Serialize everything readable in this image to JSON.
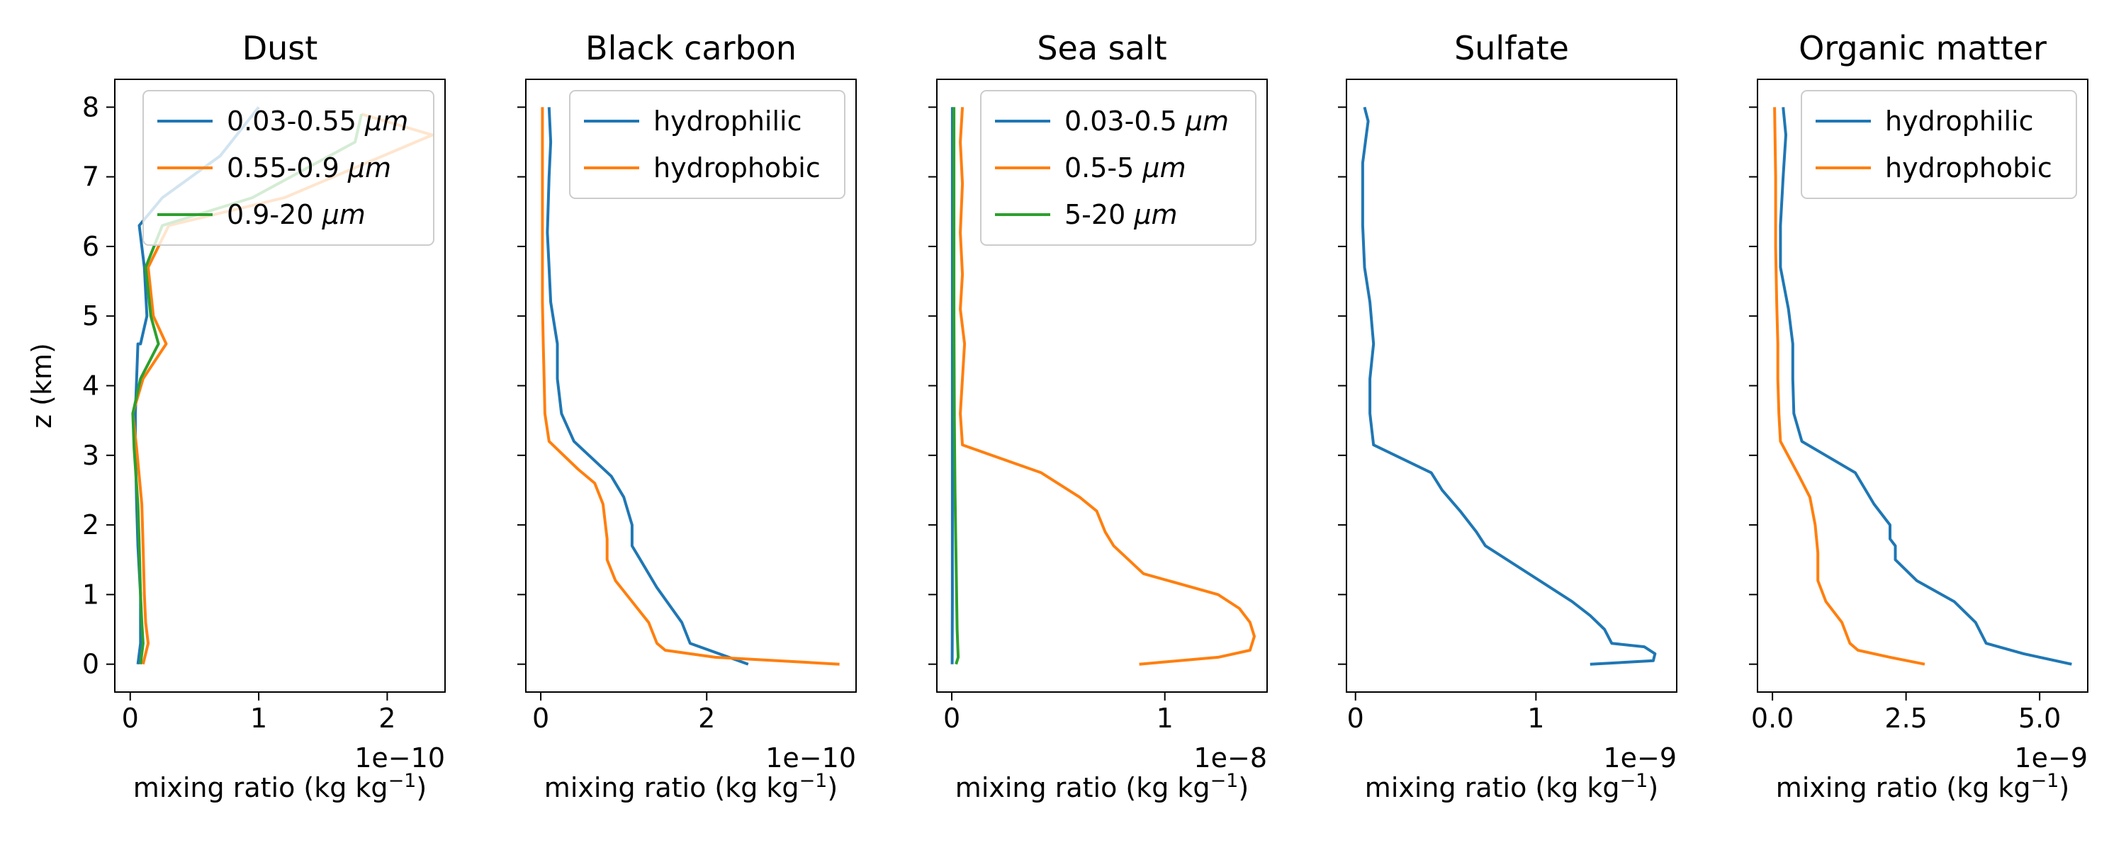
{
  "chart_data": [
    {
      "type": "line",
      "title": "Dust",
      "xlabel": "mixing ratio (kg kg",
      "xlabel_sup": "−1",
      "xlabel_close": ")",
      "ylabel": "z (km)",
      "offset_text": "1e−10",
      "xlim": [
        -0.12,
        2.45
      ],
      "ylim": [
        -0.4,
        8.4
      ],
      "xticks": [
        0,
        1,
        2
      ],
      "xtick_labels": [
        "0",
        "1",
        "2"
      ],
      "yticks": [
        0,
        1,
        2,
        3,
        4,
        5,
        6,
        7,
        8
      ],
      "ytick_labels": [
        "0",
        "1",
        "2",
        "3",
        "4",
        "5",
        "6",
        "7",
        "8"
      ],
      "legend_position": "top-right",
      "series": [
        {
          "name": "0.03-0.55 μm",
          "color": "#1f77b4",
          "x": [
            0.06,
            0.08,
            0.08,
            0.08,
            0.06,
            0.05,
            0.04,
            0.04,
            0.05,
            0.06,
            0.08,
            0.13,
            0.11,
            0.07,
            0.25,
            0.7,
            1.0
          ],
          "y": [
            0.0,
            0.3,
            0.6,
            1.0,
            1.7,
            2.3,
            3.1,
            3.6,
            4.1,
            4.6,
            4.6,
            5.0,
            5.7,
            6.3,
            6.7,
            7.3,
            8.0
          ]
        },
        {
          "name": "0.55-0.9 μm",
          "color": "#ff7f0e",
          "x": [
            0.1,
            0.14,
            0.12,
            0.11,
            0.1,
            0.09,
            0.05,
            0.02,
            0.1,
            0.28,
            0.18,
            0.14,
            0.3,
            1.2,
            2.35,
            1.8
          ],
          "y": [
            0.0,
            0.3,
            0.6,
            1.0,
            1.7,
            2.3,
            3.1,
            3.6,
            4.1,
            4.6,
            5.0,
            5.7,
            6.3,
            6.7,
            7.6,
            7.9
          ]
        },
        {
          "name": "0.9-20 μm",
          "color": "#2ca02c",
          "x": [
            0.08,
            0.1,
            0.09,
            0.08,
            0.07,
            0.06,
            0.03,
            0.02,
            0.08,
            0.22,
            0.16,
            0.12,
            0.25,
            0.95,
            1.75,
            1.8
          ],
          "y": [
            0.0,
            0.3,
            0.6,
            1.0,
            1.7,
            2.3,
            3.1,
            3.6,
            4.1,
            4.6,
            5.0,
            5.7,
            6.3,
            6.7,
            7.5,
            7.9
          ]
        }
      ]
    },
    {
      "type": "line",
      "title": "Black carbon",
      "xlabel": "mixing ratio (kg kg",
      "xlabel_sup": "−1",
      "xlabel_close": ")",
      "offset_text": "1e−10",
      "xlim": [
        -0.18,
        3.8
      ],
      "ylim": [
        -0.4,
        8.4
      ],
      "xticks": [
        0,
        2
      ],
      "xtick_labels": [
        "0",
        "2"
      ],
      "yticks": [
        0,
        1,
        2,
        3,
        4,
        5,
        6,
        7,
        8
      ],
      "legend_position": "top-right",
      "series": [
        {
          "name": "hydrophilic",
          "color": "#1f77b4",
          "x": [
            2.5,
            1.8,
            1.7,
            1.4,
            1.2,
            1.1,
            1.1,
            1.0,
            0.85,
            0.4,
            0.25,
            0.2,
            0.2,
            0.12,
            0.1,
            0.08,
            0.1,
            0.12,
            0.1
          ],
          "y": [
            0.0,
            0.3,
            0.6,
            1.1,
            1.5,
            1.7,
            2.0,
            2.4,
            2.7,
            3.2,
            3.6,
            4.1,
            4.6,
            5.2,
            5.7,
            6.2,
            7.0,
            7.5,
            8.0
          ]
        },
        {
          "name": "hydrophobic",
          "color": "#ff7f0e",
          "x": [
            3.6,
            2.1,
            1.5,
            1.4,
            1.3,
            1.1,
            0.9,
            0.8,
            0.8,
            0.75,
            0.65,
            0.45,
            0.1,
            0.05,
            0.04,
            0.03,
            0.02,
            0.02,
            0.02
          ],
          "y": [
            0.0,
            0.1,
            0.2,
            0.3,
            0.6,
            0.9,
            1.2,
            1.5,
            1.8,
            2.3,
            2.6,
            2.8,
            3.2,
            3.6,
            4.1,
            4.6,
            5.2,
            6.5,
            8.0
          ]
        }
      ]
    },
    {
      "type": "line",
      "title": "Sea salt",
      "xlabel": "mixing ratio (kg kg",
      "xlabel_sup": "−1",
      "xlabel_close": ")",
      "offset_text": "1e−8",
      "xlim": [
        -0.07,
        1.48
      ],
      "ylim": [
        -0.4,
        8.4
      ],
      "xticks": [
        0,
        1
      ],
      "xtick_labels": [
        "0",
        "1"
      ],
      "yticks": [
        0,
        1,
        2,
        3,
        4,
        5,
        6,
        7,
        8
      ],
      "legend_position": "top-right",
      "series": [
        {
          "name": "0.03-0.5 μm",
          "color": "#1f77b4",
          "x": [
            0.002,
            0.003,
            0.003,
            0.003,
            0.003,
            0.003
          ],
          "y": [
            0.0,
            1.0,
            3.0,
            5.0,
            7.0,
            8.0
          ]
        },
        {
          "name": "0.5-5 μm",
          "color": "#ff7f0e",
          "x": [
            0.88,
            1.25,
            1.4,
            1.42,
            1.4,
            1.35,
            1.25,
            0.9,
            0.76,
            0.72,
            0.68,
            0.6,
            0.42,
            0.05,
            0.04,
            0.05,
            0.06,
            0.04,
            0.05,
            0.04,
            0.05,
            0.04,
            0.05
          ],
          "y": [
            0.0,
            0.1,
            0.2,
            0.4,
            0.6,
            0.8,
            1.0,
            1.3,
            1.7,
            1.9,
            2.2,
            2.4,
            2.75,
            3.15,
            3.6,
            4.1,
            4.6,
            5.1,
            5.6,
            6.2,
            6.9,
            7.5,
            8.0
          ]
        },
        {
          "name": "5-20 μm",
          "color": "#2ca02c",
          "x": [
            0.02,
            0.03,
            0.025,
            0.02,
            0.015,
            0.012,
            0.01,
            0.01,
            0.01
          ],
          "y": [
            0.0,
            0.1,
            0.5,
            1.5,
            2.5,
            3.5,
            5.0,
            6.5,
            8.0
          ]
        }
      ]
    },
    {
      "type": "line",
      "title": "Sulfate",
      "xlabel": "mixing ratio (kg kg",
      "xlabel_sup": "−1",
      "xlabel_close": ")",
      "offset_text": "1e−9",
      "xlim": [
        -0.05,
        1.78
      ],
      "ylim": [
        -0.4,
        8.4
      ],
      "xticks": [
        0,
        1
      ],
      "xtick_labels": [
        "0",
        "1"
      ],
      "yticks": [
        0,
        1,
        2,
        3,
        4,
        5,
        6,
        7,
        8
      ],
      "legend_position": "none",
      "series": [
        {
          "name": "",
          "color": "#1f77b4",
          "x": [
            1.3,
            1.65,
            1.66,
            1.6,
            1.42,
            1.38,
            1.3,
            1.2,
            1.05,
            0.72,
            0.67,
            0.58,
            0.48,
            0.42,
            0.1,
            0.08,
            0.08,
            0.1,
            0.08,
            0.05,
            0.04,
            0.04,
            0.04,
            0.06,
            0.07,
            0.06,
            0.05
          ],
          "y": [
            0.0,
            0.05,
            0.15,
            0.25,
            0.3,
            0.5,
            0.7,
            0.9,
            1.15,
            1.7,
            1.9,
            2.2,
            2.5,
            2.75,
            3.15,
            3.6,
            4.1,
            4.6,
            5.2,
            5.7,
            6.3,
            6.7,
            7.2,
            7.6,
            7.8,
            7.9,
            8.0
          ]
        }
      ]
    },
    {
      "type": "line",
      "title": "Organic matter",
      "xlabel": "mixing ratio (kg kg",
      "xlabel_sup": "−1",
      "xlabel_close": ")",
      "offset_text": "1e−9",
      "xlim": [
        -0.28,
        5.9
      ],
      "ylim": [
        -0.4,
        8.4
      ],
      "xticks": [
        0.0,
        2.5,
        5.0
      ],
      "xtick_labels": [
        "0.0",
        "2.5",
        "5.0"
      ],
      "yticks": [
        0,
        1,
        2,
        3,
        4,
        5,
        6,
        7,
        8
      ],
      "legend_position": "top-right",
      "series": [
        {
          "name": "hydrophilic",
          "color": "#1f77b4",
          "x": [
            5.6,
            4.7,
            4.0,
            3.8,
            3.4,
            2.7,
            2.3,
            2.3,
            2.2,
            2.2,
            1.9,
            1.55,
            0.55,
            0.4,
            0.38,
            0.38,
            0.3,
            0.15,
            0.15,
            0.2,
            0.25,
            0.2
          ],
          "y": [
            0.0,
            0.15,
            0.3,
            0.6,
            0.9,
            1.2,
            1.5,
            1.7,
            1.8,
            2.0,
            2.3,
            2.75,
            3.2,
            3.6,
            4.1,
            4.6,
            5.1,
            5.7,
            6.3,
            7.0,
            7.6,
            8.0
          ]
        },
        {
          "name": "hydrophobic",
          "color": "#ff7f0e",
          "x": [
            2.85,
            2.2,
            1.6,
            1.45,
            1.3,
            1.0,
            0.85,
            0.85,
            0.8,
            0.7,
            0.5,
            0.15,
            0.12,
            0.1,
            0.1,
            0.08,
            0.06,
            0.06,
            0.04
          ],
          "y": [
            0.0,
            0.1,
            0.2,
            0.3,
            0.6,
            0.9,
            1.2,
            1.6,
            2.0,
            2.4,
            2.7,
            3.2,
            3.6,
            4.1,
            4.6,
            5.2,
            6.0,
            7.0,
            8.0
          ]
        }
      ]
    }
  ]
}
